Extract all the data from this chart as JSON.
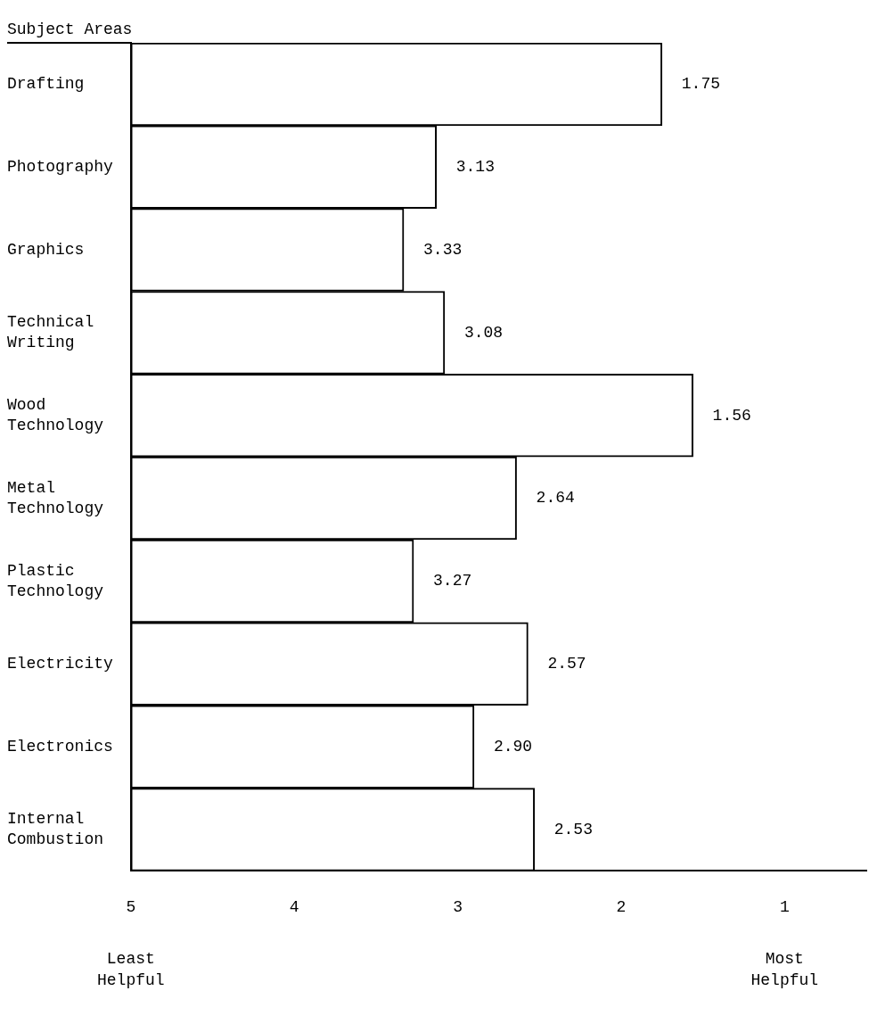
{
  "chart_data": {
    "type": "bar",
    "orientation": "horizontal",
    "ylabel": "Subject Areas",
    "categories": [
      "Drafting",
      "Photography",
      "Graphics",
      "Technical Writing",
      "Wood Technology",
      "Metal Technology",
      "Plastic Technology",
      "Electricity",
      "Electronics",
      "Internal Combustion"
    ],
    "base": [
      5,
      5,
      5,
      5,
      5,
      5,
      5,
      5,
      5,
      5
    ],
    "values": [
      -3.25,
      -1.87,
      -1.67,
      -1.92,
      -3.44,
      -2.36,
      -1.73,
      -2.43,
      -2.1,
      -2.47
    ],
    "value_labels": [
      "1.75",
      "3.13",
      "3.33",
      "3.08",
      "1.56",
      "2.64",
      "3.27",
      "2.57",
      "2.90",
      "2.53"
    ],
    "color": "#ffffff",
    "xlim": [
      5,
      0.5
    ],
    "xticks": [
      5,
      4,
      3,
      2,
      1
    ],
    "grid": false,
    "legend": false,
    "annotations": [
      "Least Helpful",
      "Most Helpful"
    ]
  }
}
